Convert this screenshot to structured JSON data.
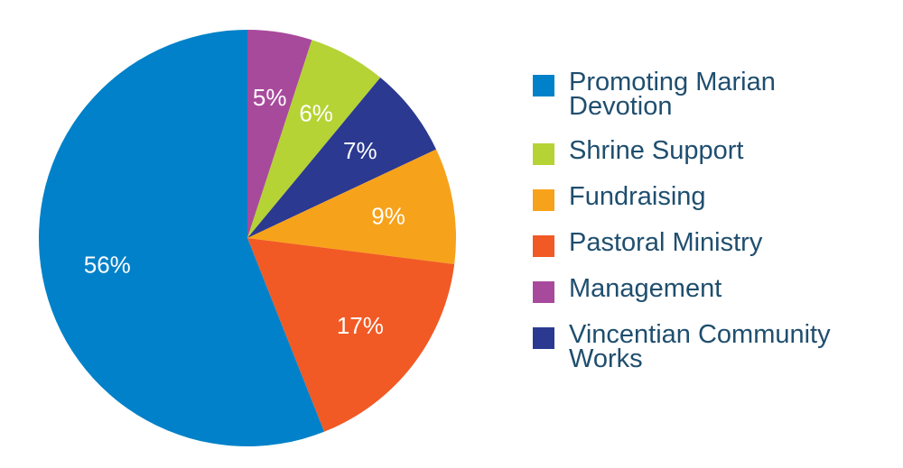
{
  "chart_data": {
    "type": "pie",
    "title": "",
    "slices": [
      {
        "name": "Management",
        "value": 5,
        "label": "5%",
        "color": "#a84a9c"
      },
      {
        "name": "Shrine Support",
        "value": 6,
        "label": "6%",
        "color": "#b5d334"
      },
      {
        "name": "Vincentian Community Works",
        "value": 7,
        "label": "7%",
        "color": "#2b3990"
      },
      {
        "name": "Fundraising",
        "value": 9,
        "label": "9%",
        "color": "#f7a21b"
      },
      {
        "name": "Pastoral Ministry",
        "value": 17,
        "label": "17%",
        "color": "#f15a24"
      },
      {
        "name": "Promoting Marian Devotion",
        "value": 56,
        "label": "56%",
        "color": "#0081c9"
      }
    ],
    "legend": {
      "placement": "right",
      "entries": [
        {
          "label": "Promoting Marian Devotion",
          "color": "#0081c9"
        },
        {
          "label": "Shrine Support",
          "color": "#b5d334"
        },
        {
          "label": "Fundraising",
          "color": "#f7a21b"
        },
        {
          "label": "Pastoral Ministry",
          "color": "#f15a24"
        },
        {
          "label": "Management",
          "color": "#a84a9c"
        },
        {
          "label": "Vincentian Community Works",
          "color": "#2b3990"
        }
      ]
    }
  }
}
